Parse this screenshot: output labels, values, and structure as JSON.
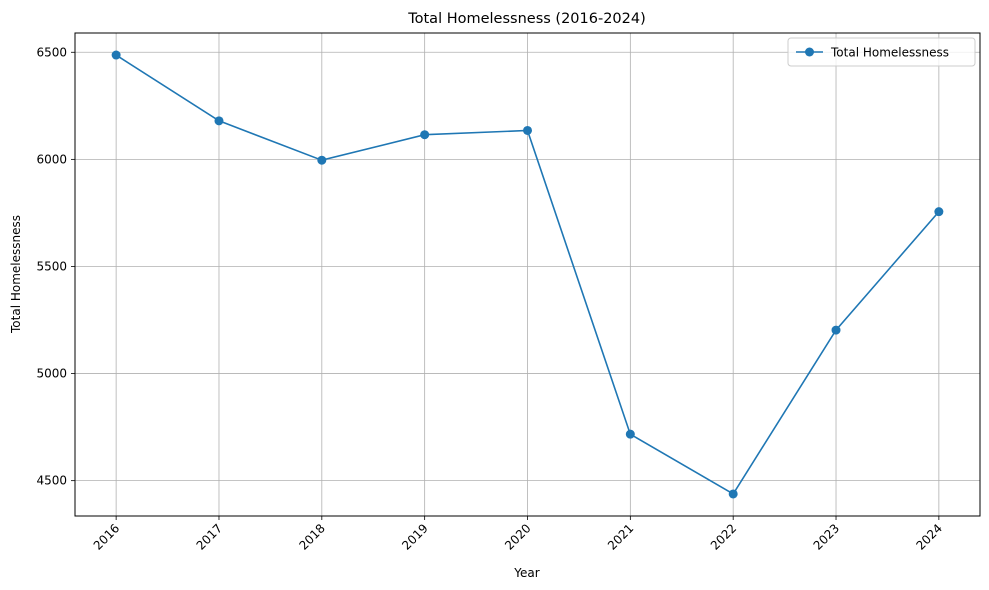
{
  "chart_data": {
    "type": "line",
    "title": "Total Homelessness (2016-2024)",
    "xlabel": "Year",
    "ylabel": "Total Homelessness",
    "categories": [
      "2016",
      "2017",
      "2018",
      "2019",
      "2020",
      "2021",
      "2022",
      "2023",
      "2024"
    ],
    "series": [
      {
        "name": "Total Homelessness",
        "color": "#1f77b4",
        "marker": "circle",
        "values": [
          6487,
          6180,
          5996,
          6115,
          6135,
          4717,
          4438,
          5203,
          5756
        ]
      }
    ],
    "y_ticks": [
      4500,
      5000,
      5500,
      6000,
      6500
    ],
    "ylim": [
      4335,
      6590
    ],
    "grid": true,
    "legend_position": "top-right",
    "x_tick_rotation": 45
  }
}
